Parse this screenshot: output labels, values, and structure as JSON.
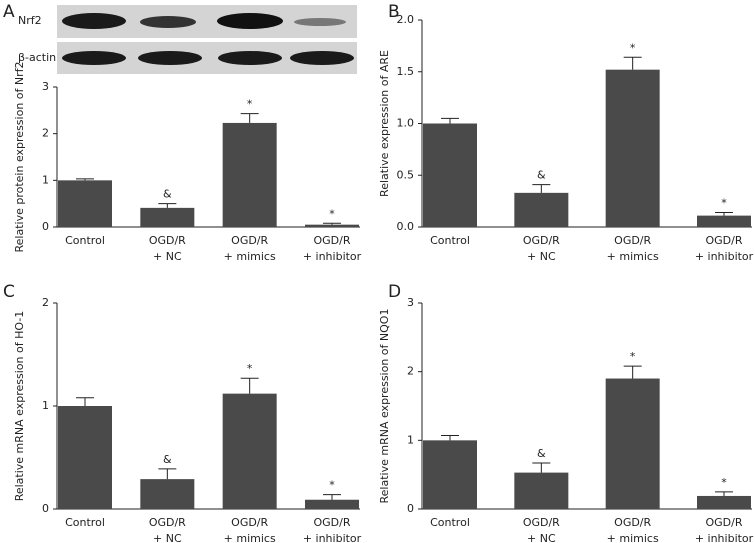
{
  "blot": {
    "rows": [
      "Nrf2",
      "β-actin"
    ]
  },
  "chart_data": [
    {
      "type": "bar",
      "panel": "A",
      "ylabel": "Relative protein expression of Nrf2",
      "color": "#4a4a4a",
      "categories": [
        [
          "Control"
        ],
        [
          "OGD/R",
          "+ NC"
        ],
        [
          "OGD/R",
          "+ mimics"
        ],
        [
          "OGD/R",
          "+ inhibitor"
        ]
      ],
      "values": [
        1.0,
        0.41,
        2.23,
        0.05
      ],
      "errors": [
        0.03,
        0.09,
        0.2,
        0.03
      ],
      "markers": [
        null,
        "&",
        "*",
        "*"
      ],
      "ylim": [
        0,
        3
      ],
      "yticks": [
        0,
        1,
        2,
        3
      ]
    },
    {
      "type": "bar",
      "panel": "B",
      "ylabel": "Relative expression of ARE",
      "color": "#4a4a4a",
      "categories": [
        [
          "Control"
        ],
        [
          "OGD/R",
          "+ NC"
        ],
        [
          "OGD/R",
          "+ mimics"
        ],
        [
          "OGD/R",
          "+ inhibitor"
        ]
      ],
      "values": [
        1.0,
        0.33,
        1.52,
        0.11
      ],
      "errors": [
        0.05,
        0.08,
        0.12,
        0.03
      ],
      "markers": [
        null,
        "&",
        "*",
        "*"
      ],
      "ylim": [
        0,
        2
      ],
      "yticks": [
        {
          "value": 0,
          "label": "0.0"
        },
        0.5,
        {
          "value": 1,
          "label": "1.0"
        },
        1.5,
        {
          "value": 2,
          "label": "2.0"
        }
      ]
    },
    {
      "type": "bar",
      "panel": "C",
      "ylabel": "Relative mRNA expression of HO-1",
      "color": "#4a4a4a",
      "categories": [
        [
          "Control"
        ],
        [
          "OGD/R",
          "+ NC"
        ],
        [
          "OGD/R",
          "+ mimics"
        ],
        [
          "OGD/R",
          "+ inhibitor"
        ]
      ],
      "values": [
        1.0,
        0.29,
        1.12,
        0.09
      ],
      "errors": [
        0.08,
        0.1,
        0.15,
        0.05
      ],
      "markers": [
        null,
        "&",
        "*",
        "*"
      ],
      "ylim": [
        0,
        2
      ],
      "yticks": [
        0,
        1,
        2
      ]
    },
    {
      "type": "bar",
      "panel": "D",
      "ylabel": "Relative mRNA expression of NQO1",
      "color": "#4a4a4a",
      "categories": [
        [
          "Control"
        ],
        [
          "OGD/R",
          "+ NC"
        ],
        [
          "OGD/R",
          "+ mimics"
        ],
        [
          "OGD/R",
          "+ inhibitor"
        ]
      ],
      "values": [
        1.0,
        0.53,
        1.9,
        0.19
      ],
      "errors": [
        0.07,
        0.14,
        0.18,
        0.06
      ],
      "markers": [
        null,
        "&",
        "*",
        "*"
      ],
      "ylim": [
        0,
        3
      ],
      "yticks": [
        0,
        1,
        2,
        3
      ]
    }
  ]
}
